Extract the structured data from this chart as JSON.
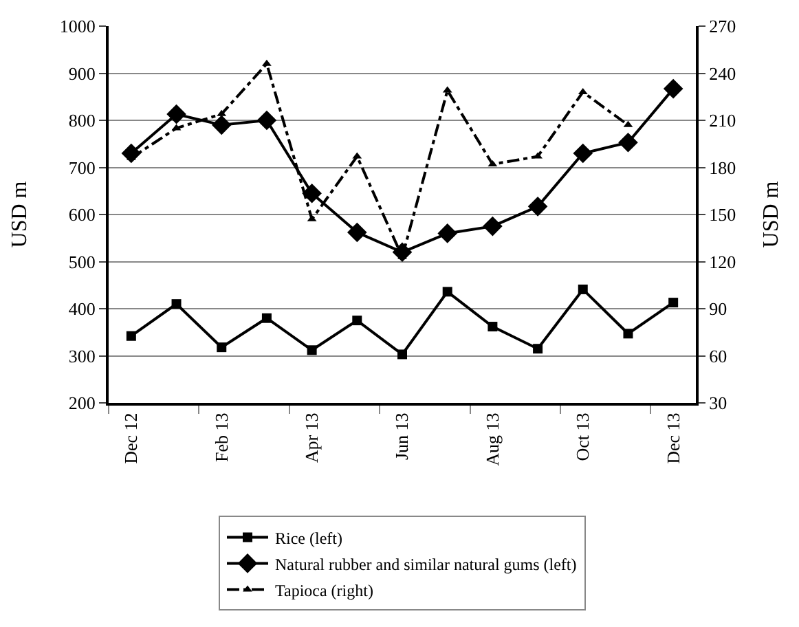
{
  "chart_data": {
    "type": "line",
    "categories": [
      "Dec 12",
      null,
      "Feb 13",
      null,
      "Apr 13",
      null,
      "Jun 13",
      null,
      "Aug 13",
      null,
      "Oct 13",
      null,
      "Dec 13"
    ],
    "ylabel": "USD m",
    "y2label": "USD m",
    "ylim": [
      200,
      1000
    ],
    "yticks": [
      200,
      300,
      400,
      500,
      600,
      700,
      800,
      900,
      1000
    ],
    "y2lim": [
      30,
      270
    ],
    "y2ticks": [
      30,
      60,
      90,
      120,
      150,
      180,
      210,
      240,
      270
    ],
    "grid": "y",
    "legend": "bottom",
    "series": [
      {
        "name": "Rice (left)",
        "color": "#000000",
        "marker": "square",
        "line_style": "solid",
        "values": [
          342,
          410,
          318,
          380,
          312,
          375,
          303,
          436,
          362,
          315,
          441,
          347,
          413
        ]
      },
      {
        "name": "Natural rubber and similar natural gums (left)",
        "color": "#000000",
        "marker": "diamond",
        "line_style": "solid",
        "values": [
          730,
          813,
          790,
          800,
          645,
          562,
          520,
          560,
          575,
          617,
          730,
          753,
          867
        ]
      },
      {
        "name": "Tapioca (right)",
        "color": "#000000",
        "marker": "triangle",
        "line_style": "dashdot",
        "axis": "y2",
        "values": [
          186,
          205,
          214,
          246,
          147,
          187,
          123,
          229,
          182,
          187,
          228,
          207,
          null
        ]
      }
    ]
  }
}
